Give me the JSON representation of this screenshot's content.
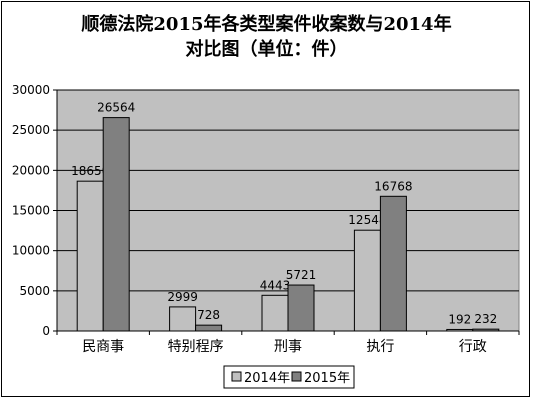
{
  "chart_data": {
    "type": "bar",
    "title_line1": "顺德法院2015年各类型案件收案数与2014年",
    "title_line2": "对比图（单位：件）",
    "categories": [
      "民商事",
      "特别程序",
      "刑事",
      "执行",
      "行政"
    ],
    "series": [
      {
        "name": "2014年",
        "values": [
          18650,
          2999,
          4443,
          12548,
          192
        ],
        "color": "#c0c0c0"
      },
      {
        "name": "2015年",
        "values": [
          26564,
          728,
          5721,
          16768,
          232
        ],
        "color": "#808080"
      }
    ],
    "ylim": [
      0,
      30000
    ],
    "yticks": [
      0,
      5000,
      10000,
      15000,
      20000,
      25000,
      30000
    ],
    "plot_background": "#c0c0c0",
    "gridlines": true,
    "legend_position": "bottom"
  }
}
